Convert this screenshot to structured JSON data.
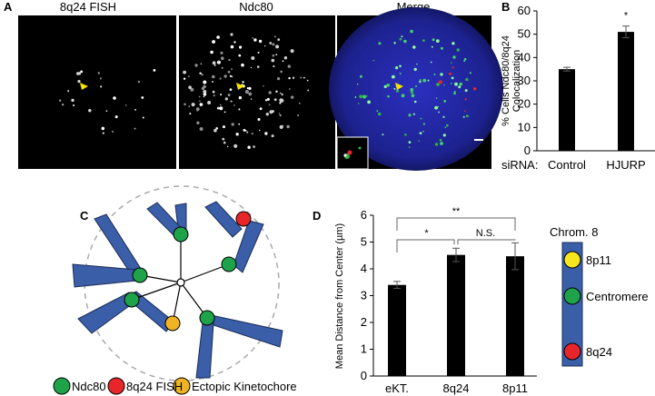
{
  "panel_labels": {
    "a": "A",
    "b": "B",
    "c": "C",
    "d": "D"
  },
  "panel_a": {
    "titles": [
      "8q24 FISH",
      "Ndc80",
      "Merge"
    ],
    "title_colors": [
      "#e8262a",
      "#2fb34a",
      "#000000"
    ]
  },
  "panel_c": {
    "legend": [
      {
        "label": "Ndc80",
        "color": "#1fa34a"
      },
      {
        "label": "8q24 FISH",
        "color": "#e8262a"
      },
      {
        "label": "Ectopic Kinetochore",
        "color": "#f0b323"
      }
    ],
    "arm_color": "#3a5ea8"
  },
  "panel_d_chromosome": {
    "title": "Chrom. 8",
    "markers": [
      {
        "label": "8p11",
        "color": "#f5e620"
      },
      {
        "label": "Centromere",
        "color": "#1fa34a"
      },
      {
        "label": "8q24",
        "color": "#e8262a"
      }
    ]
  },
  "chart_data": [
    {
      "type": "bar",
      "panel": "B",
      "x_prefix": "siRNA:",
      "categories": [
        "Control",
        "HJURP"
      ],
      "values": [
        35,
        51
      ],
      "errors": [
        0.8,
        2.5
      ],
      "ylabel_lines": [
        "% Cells Ndc80/8q24",
        "Colocalization"
      ],
      "ylim": [
        0,
        60
      ],
      "yticks": [
        0,
        10,
        20,
        30,
        40,
        50,
        60
      ],
      "significance": [
        {
          "bar": 1,
          "label": "*"
        }
      ],
      "bar_color": "#000000"
    },
    {
      "type": "bar",
      "panel": "D",
      "categories": [
        "eKT.",
        "8q24",
        "8p11"
      ],
      "values": [
        3.4,
        4.52,
        4.47
      ],
      "errors": [
        0.13,
        0.25,
        0.5
      ],
      "ylabel": "Mean Distance from Center (µm)",
      "ylim": [
        0,
        6
      ],
      "yticks": [
        0,
        1,
        2,
        3,
        4,
        5,
        6
      ],
      "significance": [
        {
          "from": 1,
          "to": 2,
          "label": "N.S."
        },
        {
          "from": 0,
          "to": 1,
          "label": "*"
        },
        {
          "from": 0,
          "to": 2,
          "label": "**"
        }
      ],
      "bar_color": "#000000"
    }
  ]
}
